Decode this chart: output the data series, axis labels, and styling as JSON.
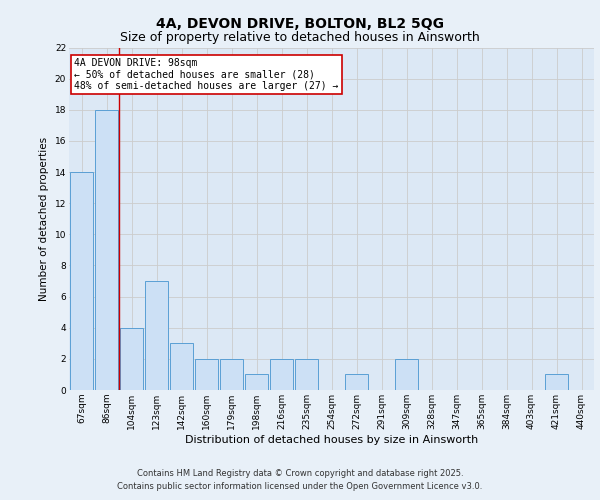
{
  "title": "4A, DEVON DRIVE, BOLTON, BL2 5QG",
  "subtitle": "Size of property relative to detached houses in Ainsworth",
  "xlabel": "Distribution of detached houses by size in Ainsworth",
  "ylabel": "Number of detached properties",
  "categories": [
    "67sqm",
    "86sqm",
    "104sqm",
    "123sqm",
    "142sqm",
    "160sqm",
    "179sqm",
    "198sqm",
    "216sqm",
    "235sqm",
    "254sqm",
    "272sqm",
    "291sqm",
    "309sqm",
    "328sqm",
    "347sqm",
    "365sqm",
    "384sqm",
    "403sqm",
    "421sqm",
    "440sqm"
  ],
  "values": [
    14,
    18,
    4,
    7,
    3,
    2,
    2,
    1,
    2,
    2,
    0,
    1,
    0,
    2,
    0,
    0,
    0,
    0,
    0,
    1,
    0
  ],
  "bar_color": "#cce0f5",
  "bar_edge_color": "#5a9fd4",
  "grid_color": "#cccccc",
  "background_color": "#e8f0f8",
  "plot_bg_color": "#dce8f5",
  "red_line_x": 1.5,
  "annotation_text": "4A DEVON DRIVE: 98sqm\n← 50% of detached houses are smaller (28)\n48% of semi-detached houses are larger (27) →",
  "annotation_box_color": "#ffffff",
  "annotation_border_color": "#cc0000",
  "ylim": [
    0,
    22
  ],
  "yticks": [
    0,
    2,
    4,
    6,
    8,
    10,
    12,
    14,
    16,
    18,
    20,
    22
  ],
  "footer_line1": "Contains HM Land Registry data © Crown copyright and database right 2025.",
  "footer_line2": "Contains public sector information licensed under the Open Government Licence v3.0.",
  "title_fontsize": 10,
  "subtitle_fontsize": 9,
  "tick_fontsize": 6.5,
  "label_fontsize": 8,
  "annotation_fontsize": 7,
  "footer_fontsize": 6,
  "ylabel_fontsize": 7.5
}
